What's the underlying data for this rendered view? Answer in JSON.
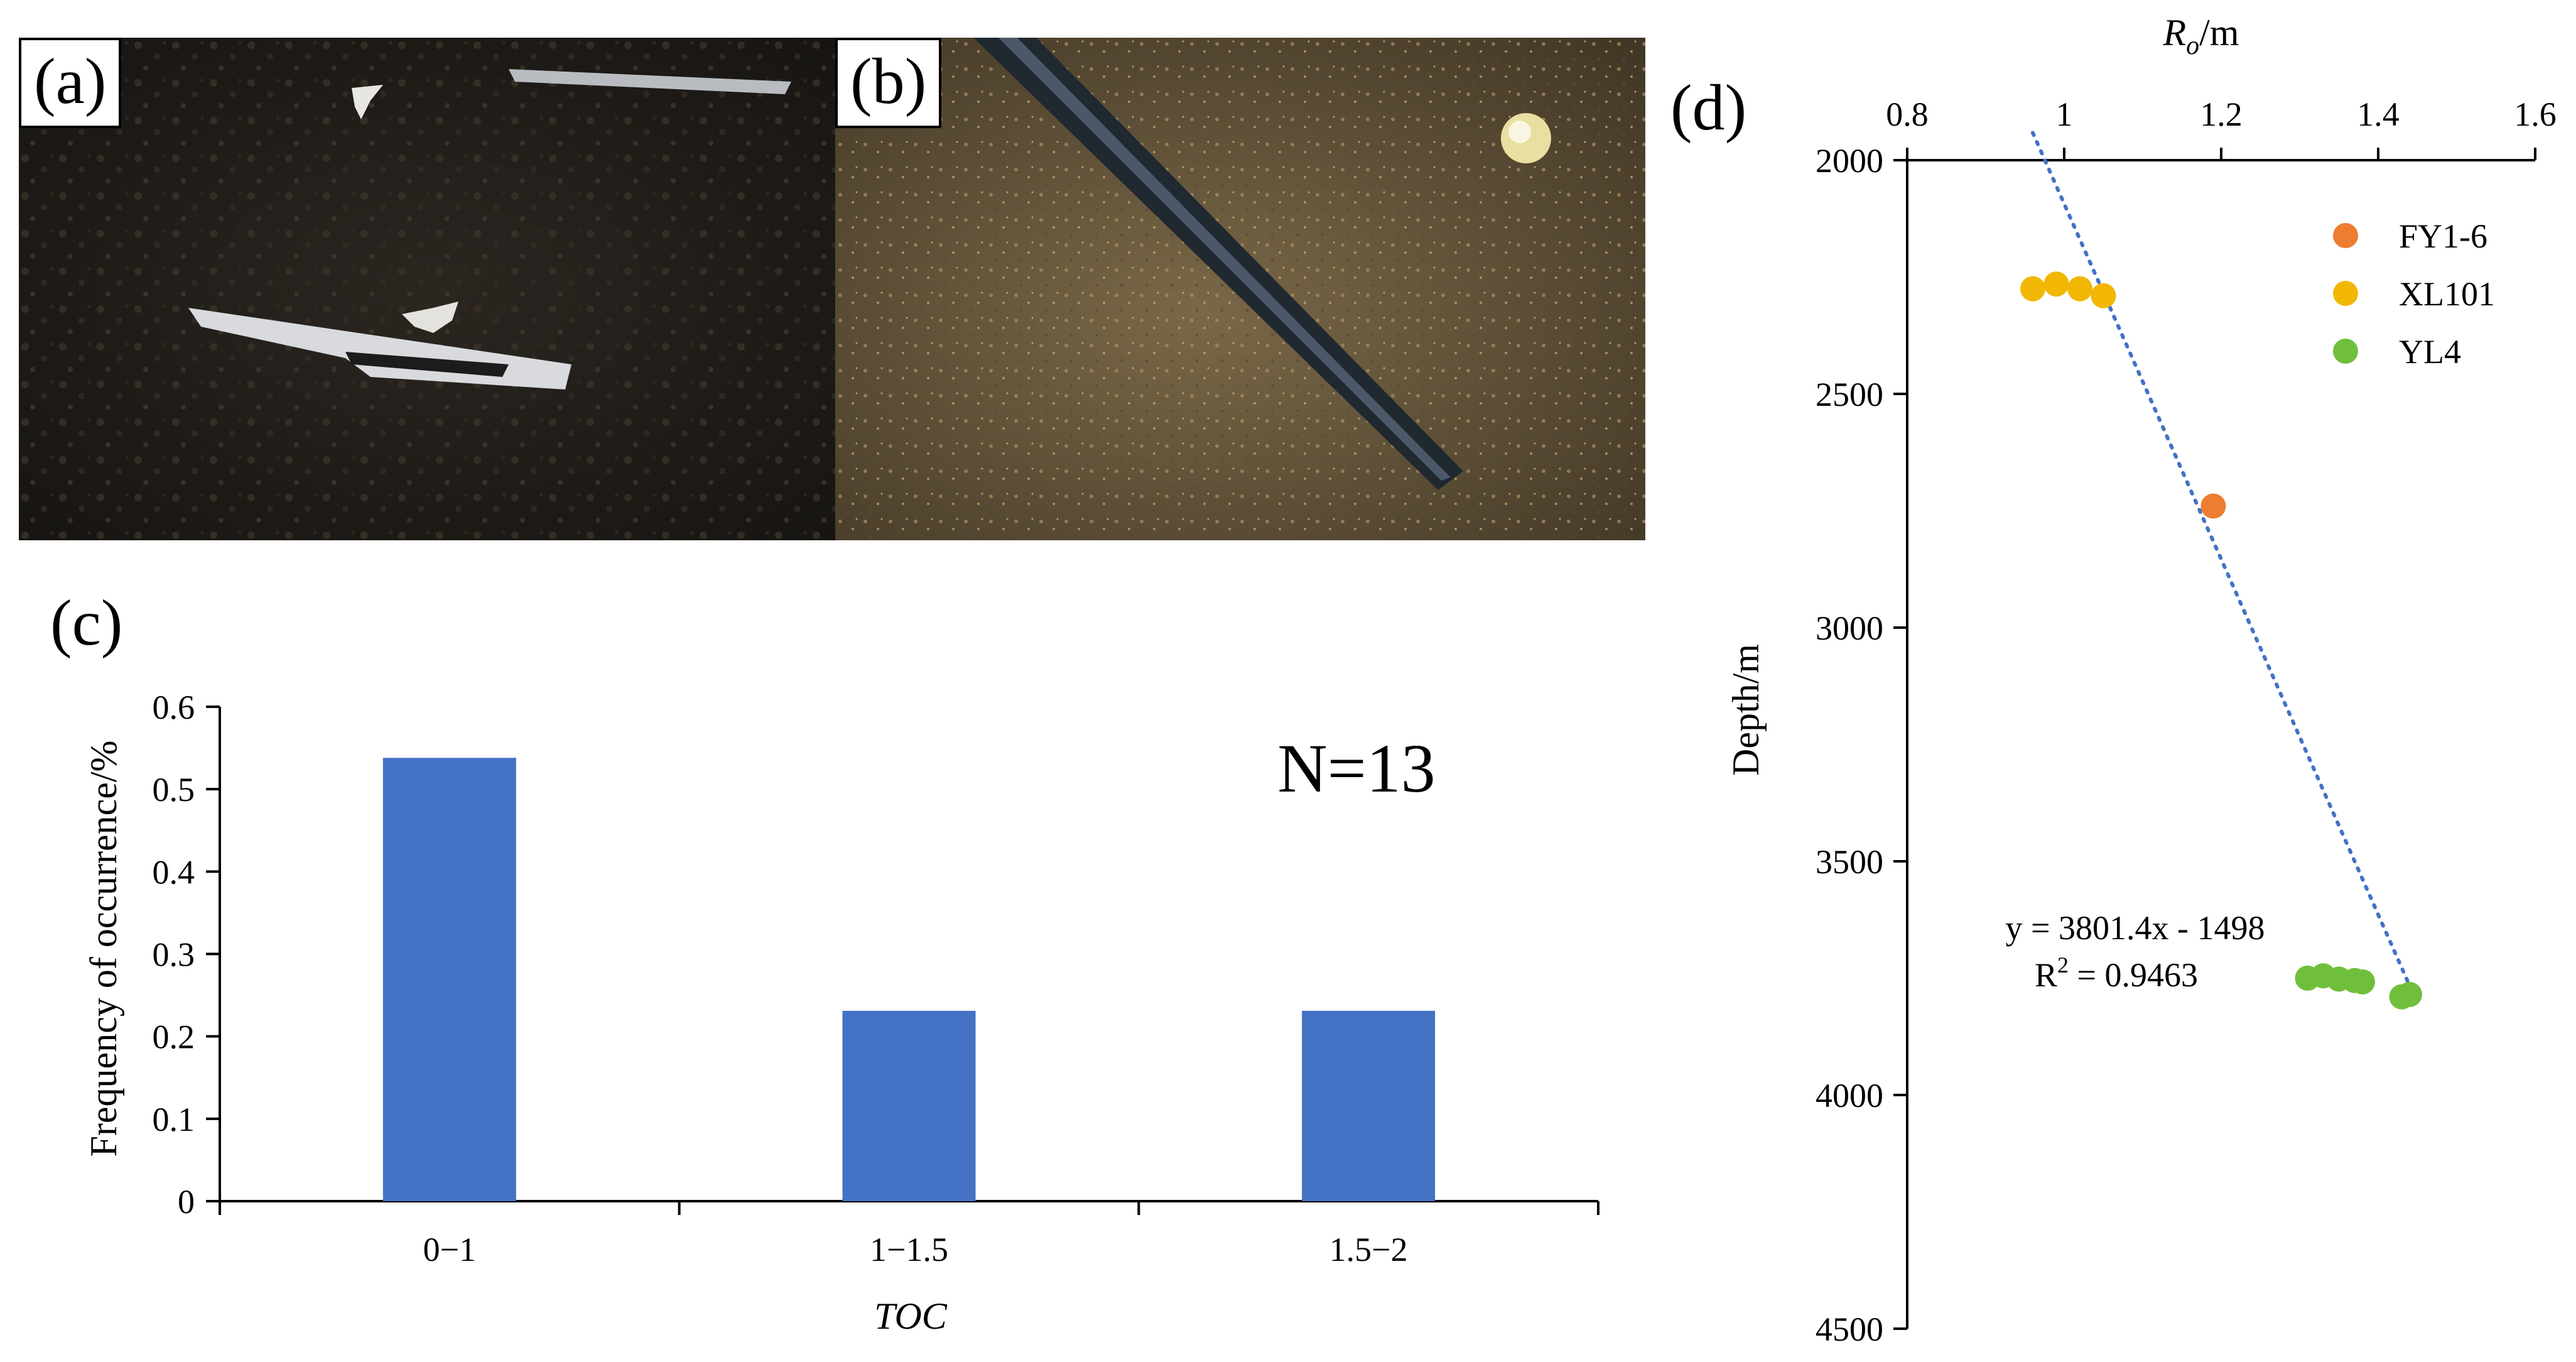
{
  "panels": {
    "a": {
      "label": "(a)"
    },
    "b": {
      "label": "(b)"
    },
    "c": {
      "label": "(c)"
    },
    "d": {
      "label": "(d)"
    }
  },
  "colors": {
    "bar": "#4472C4",
    "FY1-6": "#ED7D31",
    "XL101": "#F2B705",
    "YL4": "#70BF3C",
    "trend": "#4472C4"
  },
  "chart_data": [
    {
      "type": "bar",
      "categories": [
        "0−1",
        "1−1.5",
        "1.5−2"
      ],
      "values": [
        0.538,
        0.231,
        0.231
      ],
      "xlabel": "TOC",
      "ylabel": "Frequency of occurrence/%",
      "ylim": [
        0,
        0.6
      ],
      "yticks": [
        "0",
        "0.1",
        "0.2",
        "0.3",
        "0.4",
        "0.5",
        "0.6"
      ],
      "annotation": "N=13",
      "grid": false
    },
    {
      "type": "scatter",
      "xlabel_main": "R",
      "xlabel_sub": "o",
      "xlabel_suffix": "/m",
      "ylabel": "Depth/m",
      "xlim": [
        0.8,
        1.6
      ],
      "ylim": [
        2000,
        4500
      ],
      "y_inverted": true,
      "xaxis_position": "top",
      "xticks": [
        "0.8",
        "1",
        "1.2",
        "1.4",
        "1.6"
      ],
      "yticks": [
        "2000",
        "2500",
        "3000",
        "3500",
        "4000",
        "4500"
      ],
      "legend_position": "top-right",
      "series": [
        {
          "name": "FY1-6",
          "points": [
            [
              1.19,
              2740
            ]
          ]
        },
        {
          "name": "XL101",
          "points": [
            [
              0.96,
              2275
            ],
            [
              0.99,
              2265
            ],
            [
              1.02,
              2275
            ],
            [
              1.05,
              2290
            ]
          ]
        },
        {
          "name": "YL4",
          "points": [
            [
              1.31,
              3750
            ],
            [
              1.33,
              3745
            ],
            [
              1.35,
              3752
            ],
            [
              1.37,
              3755
            ],
            [
              1.38,
              3758
            ],
            [
              1.43,
              3790
            ],
            [
              1.44,
              3785
            ]
          ]
        }
      ],
      "trendline": {
        "equation": "y = 3801.4x - 1498",
        "r2_prefix": "R",
        "r2_sup": "2",
        "r2_value": " = 0.9463",
        "x_range": [
          0.96,
          1.44
        ]
      },
      "grid": false
    }
  ]
}
